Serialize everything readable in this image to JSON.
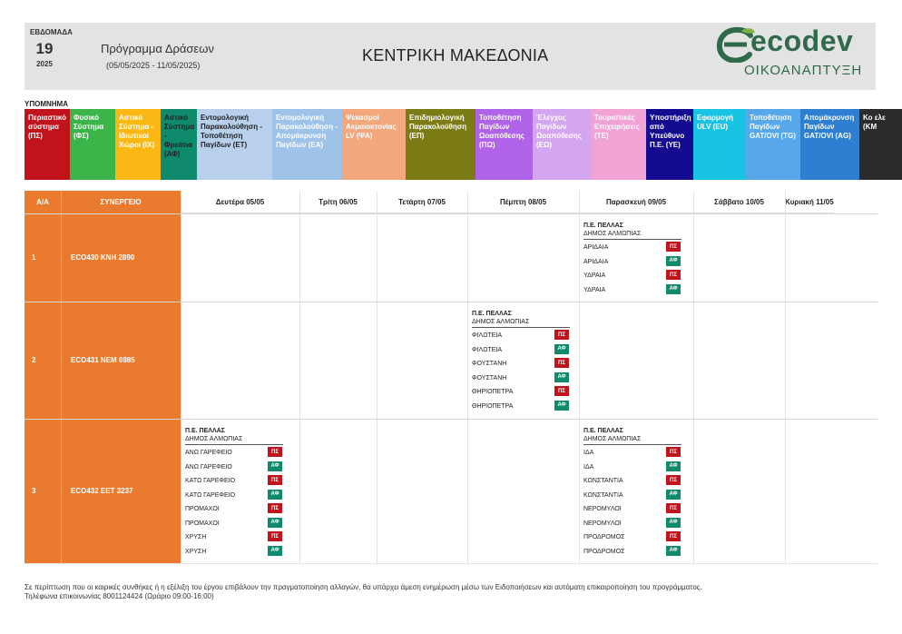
{
  "header": {
    "week_label": "ΕΒΔΟΜΑΔΑ",
    "week_number": "19",
    "year": "2025",
    "program_title": "Πρόγραμμα Δράσεων",
    "program_dates": "(05/05/2025 - 11/05/2025)",
    "region": "ΚΕΝΤΡΙΚΗ ΜΑΚΕΔΟΝΙΑ",
    "logo_text": "ecodev",
    "logo_subtitle": "ΟΙΚΟΑΝΑΠΤΥΞΗ",
    "logo_color": "#2f6b4a"
  },
  "legend": {
    "title": "ΥΠΟΜΝΗΜΑ",
    "items": [
      {
        "label": "Περιαστικό σύστημα (ΠΣ)",
        "bg": "#c0131c",
        "fg": "#ffffff"
      },
      {
        "label": "Φυσικό Σύστημα (ΦΣ)",
        "bg": "#3bb54a",
        "fg": "#ffffff"
      },
      {
        "label": "Αστικό Σύστημα - Ιδιωτικοί Χώροι (ΙΧ)",
        "bg": "#fbb814",
        "fg": "#ffffff"
      },
      {
        "label": "Αστικό Σύστημα - Φρεάτια (ΑΦ)",
        "bg": "#0f8a6c",
        "fg": "#222222"
      },
      {
        "label": "Εντομολογική Παρακολούθηση - Τοποθέτηση Παγίδων (ΕΤ)",
        "bg": "#b8d0ec",
        "fg": "#222222"
      },
      {
        "label": "Εντομολογική Παρακολούθηση - Απομάκρυνση Παγίδων (ΕΑ)",
        "bg": "#9fc2e8",
        "fg": "#ffffff"
      },
      {
        "label": "Ψεκασμοί Ακμαιοκτονίας LV (ΨΑ)",
        "bg": "#f2a77c",
        "fg": "#ffffff"
      },
      {
        "label": "Επιδημιολογική Παρακολούθηση (ΕΠ)",
        "bg": "#7c7c17",
        "fg": "#ffffff"
      },
      {
        "label": "Τοποθέτηση Παγίδων Ωοαπόθεσης (ΠΩ)",
        "bg": "#b063e8",
        "fg": "#ffffff"
      },
      {
        "label": "Έλεγχος Παγίδων Ωοαπόθεσης (ΕΩ)",
        "bg": "#d4a6f0",
        "fg": "#ffffff"
      },
      {
        "label": "Τουριστικές Επιχειρήσεις (ΤΕ)",
        "bg": "#f2a3d6",
        "fg": "#ffffff"
      },
      {
        "label": "Υποστήριξη από Υπεύθυνο Π.Ε. (ΥΕ)",
        "bg": "#150b91",
        "fg": "#ffffff"
      },
      {
        "label": "Εφαρμογή ULV (EU)",
        "bg": "#18c3e3",
        "fg": "#ffffff"
      },
      {
        "label": "Τοποθέτηση Παγίδων GAT/OVI (TG)",
        "bg": "#57a8ea",
        "fg": "#ffffff"
      },
      {
        "label": "Απομάκρυνση Παγίδων GAT/OVI (AG)",
        "bg": "#2e7fd1",
        "fg": "#ffffff"
      },
      {
        "label": "Κο ελε (ΚΜ",
        "bg": "#2b2b2b",
        "fg": "#ffffff"
      }
    ]
  },
  "table": {
    "col_aa": "Α/Α",
    "col_team": "ΣΥΝΕΡΓΕΙΟ",
    "days": [
      "Δευτέρα 05/05",
      "Τρίτη 06/05",
      "Τετάρτη 07/05",
      "Πέμπτη 08/05",
      "Παρασκευή 09/05",
      "Σάββατο 10/05",
      "Κυριακή 11/05"
    ],
    "rows": [
      {
        "num": "1",
        "team": "ECO430  ΚΝΗ 2890",
        "blocks": [
          {
            "day": 4,
            "pe": "Π.Ε. ΠΕΛΛΑΣ",
            "dimos": "ΔΗΜΟΣ ΑΛΜΩΠΙΑΣ",
            "items": [
              {
                "name": "ΑΡΙΔΑΙΑ",
                "code": "ΠΣ",
                "color": "#c0131c"
              },
              {
                "name": "ΑΡΙΔΑΙΑ",
                "code": "ΑΦ",
                "color": "#0f8a6c"
              },
              {
                "name": "ΥΔΡΑΙΑ",
                "code": "ΠΣ",
                "color": "#c0131c"
              },
              {
                "name": "ΥΔΡΑΙΑ",
                "code": "ΑΦ",
                "color": "#0f8a6c"
              }
            ]
          }
        ]
      },
      {
        "num": "2",
        "team": "ECO431  ΝΕΜ 6985",
        "blocks": [
          {
            "day": 3,
            "pe": "Π.Ε. ΠΕΛΛΑΣ",
            "dimos": "ΔΗΜΟΣ ΑΛΜΩΠΙΑΣ",
            "items": [
              {
                "name": "ΦΙΛΩΤΕΙΑ",
                "code": "ΠΣ",
                "color": "#c0131c"
              },
              {
                "name": "ΦΙΛΩΤΕΙΑ",
                "code": "ΑΦ",
                "color": "#0f8a6c"
              },
              {
                "name": "ΦΟΥΣΤΑΝΗ",
                "code": "ΠΣ",
                "color": "#c0131c"
              },
              {
                "name": "ΦΟΥΣΤΑΝΗ",
                "code": "ΑΦ",
                "color": "#0f8a6c"
              },
              {
                "name": "ΘΗΡΙΟΠΕΤΡΑ",
                "code": "ΠΣ",
                "color": "#c0131c"
              },
              {
                "name": "ΘΗΡΙΟΠΕΤΡΑ",
                "code": "ΑΦ",
                "color": "#0f8a6c"
              }
            ]
          }
        ]
      },
      {
        "num": "3",
        "team": "ECO432  ΕΕΤ 3237",
        "blocks": [
          {
            "day": 0,
            "pe": "Π.Ε. ΠΕΛΛΑΣ",
            "dimos": "ΔΗΜΟΣ ΑΛΜΩΠΙΑΣ",
            "items": [
              {
                "name": "ΑΝΩ ΓΑΡΕΦΕΙΟ",
                "code": "ΠΣ",
                "color": "#c0131c"
              },
              {
                "name": "ΑΝΩ ΓΑΡΕΦΕΙΟ",
                "code": "ΑΦ",
                "color": "#0f8a6c"
              },
              {
                "name": "ΚΑΤΩ ΓΑΡΕΦΕΙΟ",
                "code": "ΠΣ",
                "color": "#c0131c"
              },
              {
                "name": "ΚΑΤΩ ΓΑΡΕΦΕΙΟ",
                "code": "ΑΦ",
                "color": "#0f8a6c"
              },
              {
                "name": "ΠΡΟΜΑΧΟΙ",
                "code": "ΠΣ",
                "color": "#c0131c"
              },
              {
                "name": "ΠΡΟΜΑΧΟΙ",
                "code": "ΑΦ",
                "color": "#0f8a6c"
              },
              {
                "name": "ΧΡΥΣΗ",
                "code": "ΠΣ",
                "color": "#c0131c"
              },
              {
                "name": "ΧΡΥΣΗ",
                "code": "ΑΦ",
                "color": "#0f8a6c"
              }
            ]
          },
          {
            "day": 4,
            "pe": "Π.Ε. ΠΕΛΛΑΣ",
            "dimos": "ΔΗΜΟΣ ΑΛΜΩΠΙΑΣ",
            "items": [
              {
                "name": "ΙΔΑ",
                "code": "ΠΣ",
                "color": "#c0131c"
              },
              {
                "name": "ΙΔΑ",
                "code": "ΑΦ",
                "color": "#0f8a6c"
              },
              {
                "name": "ΚΩΝΣΤΑΝΤΙΑ",
                "code": "ΠΣ",
                "color": "#c0131c"
              },
              {
                "name": "ΚΩΝΣΤΑΝΤΙΑ",
                "code": "ΑΦ",
                "color": "#0f8a6c"
              },
              {
                "name": "ΝΕΡΟΜΥΛΟΙ",
                "code": "ΠΣ",
                "color": "#c0131c"
              },
              {
                "name": "ΝΕΡΟΜΥΛΟΙ",
                "code": "ΑΦ",
                "color": "#0f8a6c"
              },
              {
                "name": "ΠΡΟΔΡΟΜΟΣ",
                "code": "ΠΣ",
                "color": "#c0131c"
              },
              {
                "name": "ΠΡΟΔΡΟΜΟΣ",
                "code": "ΑΦ",
                "color": "#0f8a6c"
              }
            ]
          }
        ]
      }
    ]
  },
  "footer": {
    "line1": "Σε περίπτωση που οι καιρικές συνθήκες ή η εξέλιξη του έργου επιβάλουν την πραγματοποίηση αλλαγών, θα υπάρχει άμεση ενημέρωση μέσω των Ειδοποιήσεων και αυτόματη επικαιροποίηση του προγράμματος.",
    "line2": "Τηλέφωνα επικοινωνίας 8001124424 (Ωράριο 09:00-16:00)"
  }
}
